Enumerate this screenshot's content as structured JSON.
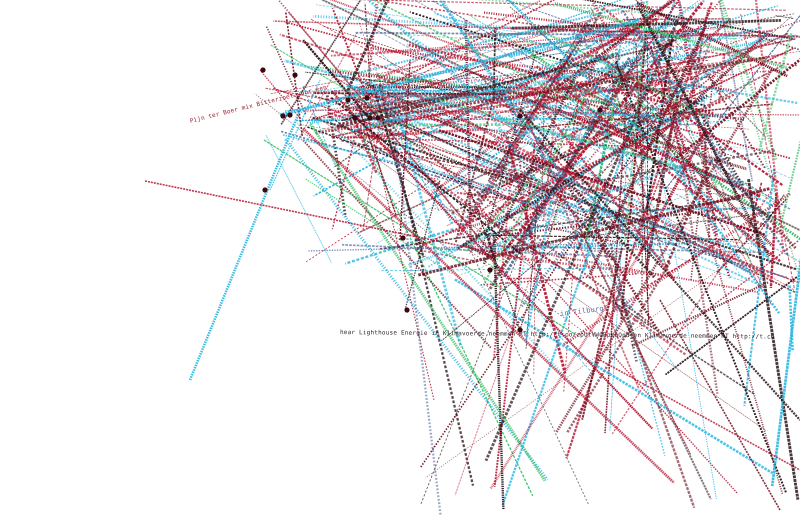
{
  "artwork": {
    "palette": {
      "crimson": "#b5122e",
      "dark-red": "#6e0f1e",
      "near-black": "#2a1418",
      "cyan": "#27b6e3",
      "slate": "#5a6fa0",
      "green": "#3cc06a"
    },
    "visible_text": {
      "strand_1": "hear Lighthouse Energie in Klimavoerde neemmen RT http://t.co/zpUtVWQBpKqQpd en Klimavoerde neemmen RT http://t.co",
      "strand_2": "in Tilburg: je G",
      "strand_3": "Pijn ter Boer mix Bitterzoet voor een"
    }
  }
}
